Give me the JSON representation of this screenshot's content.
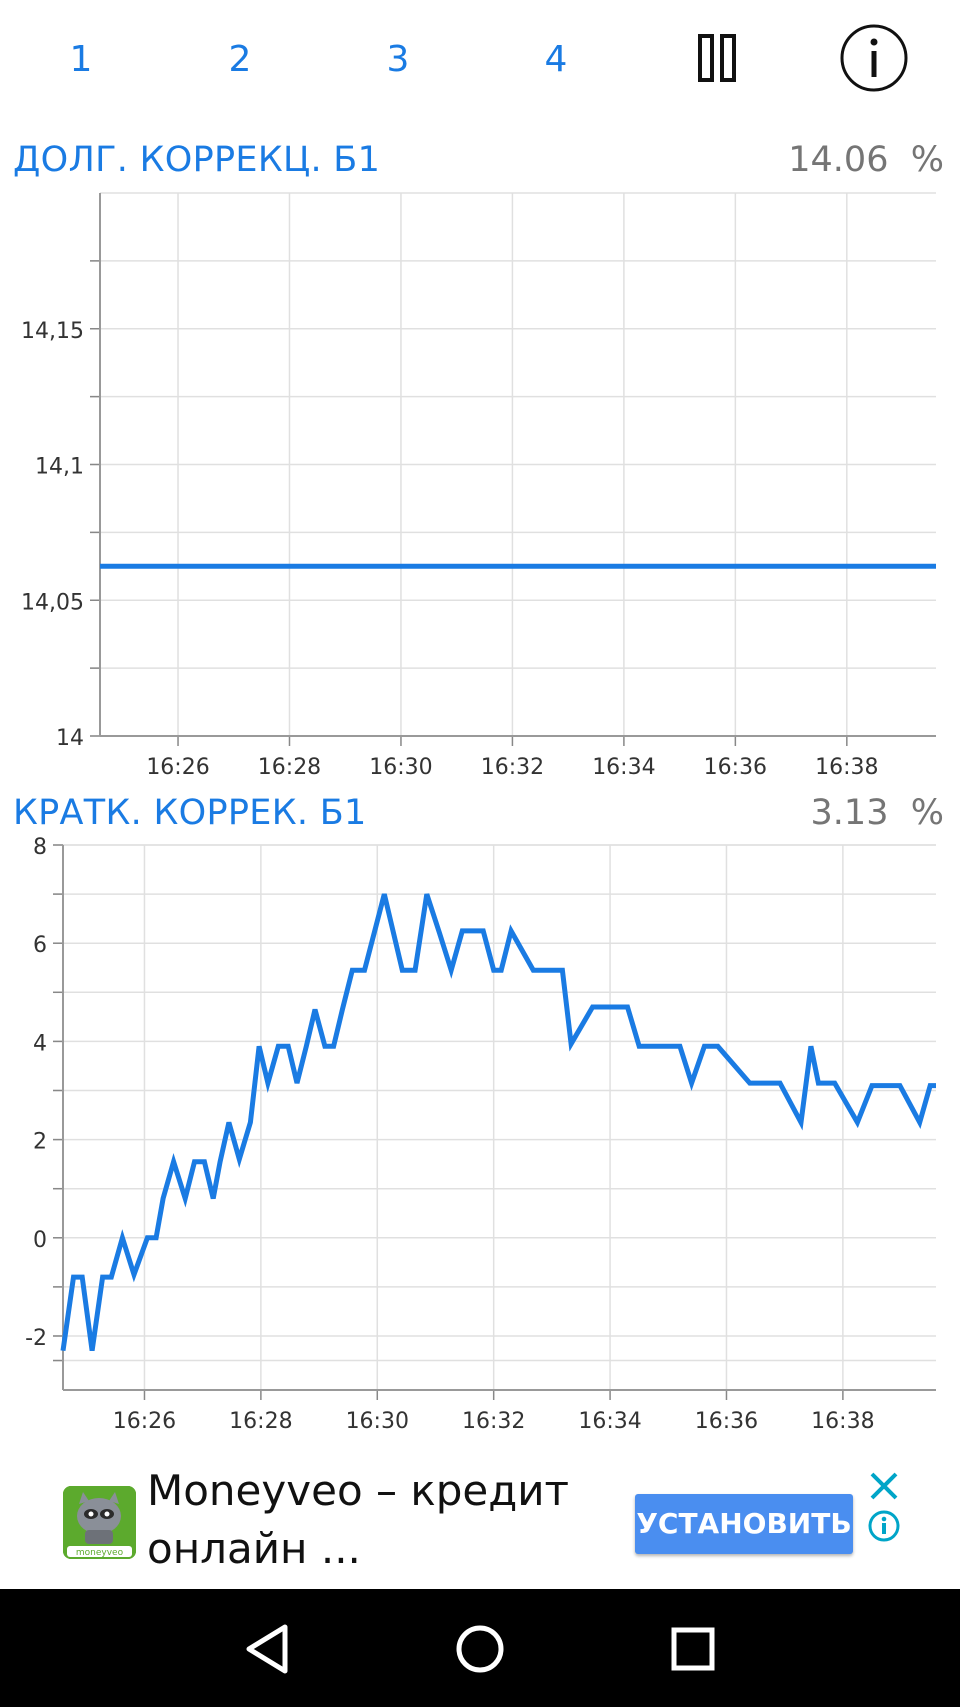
{
  "tabs": [
    {
      "label": "1"
    },
    {
      "label": "2"
    },
    {
      "label": "3"
    },
    {
      "label": "4"
    }
  ],
  "toolbar": {
    "pause_icon": "pause-icon",
    "info_icon": "info-icon"
  },
  "colors": {
    "accent": "#1a7be3",
    "grid": "#e0e0e0",
    "ad_button": "#4a8ef0",
    "ad_close": "#00a5c8"
  },
  "charts": [
    {
      "title": "ДОЛГ. КОРРЕКЦ. Б1",
      "value": "14.06",
      "unit": "%"
    },
    {
      "title": "КРАТК. КОРРЕК. Б1",
      "value": "3.13",
      "unit": "%"
    }
  ],
  "chart_data": [
    {
      "type": "line",
      "title": "ДОЛГ. КОРРЕКЦ. Б1",
      "x_tick_labels": [
        "16:26",
        "16:28",
        "16:30",
        "16:32",
        "16:34",
        "16:36",
        "16:38"
      ],
      "y_tick_labels": [
        "14",
        "14,05",
        "14,1",
        "14,15"
      ],
      "y_ticks": [
        14,
        14.05,
        14.1,
        14.15
      ],
      "ylim": [
        14,
        14.2
      ],
      "xlim_minutes": [
        24.6,
        39.6
      ],
      "grid": true,
      "series": [
        {
          "x": [
            24.6,
            39.6
          ],
          "y": [
            14.0625,
            14.0625
          ]
        }
      ]
    },
    {
      "type": "line",
      "title": "КРАТК. КОРРЕК. Б1",
      "x_tick_labels": [
        "16:26",
        "16:28",
        "16:30",
        "16:32",
        "16:34",
        "16:36",
        "16:38"
      ],
      "y_tick_labels": [
        "-2",
        "0",
        "2",
        "4",
        "6",
        "8"
      ],
      "y_ticks": [
        -2,
        0,
        2,
        4,
        6,
        8
      ],
      "ylim": [
        -3.1,
        8
      ],
      "xlim_minutes": [
        24.6,
        39.6
      ],
      "grid": true,
      "series": [
        {
          "x": [
            24.6,
            24.78,
            24.93,
            25.1,
            25.28,
            25.43,
            25.62,
            25.82,
            26.05,
            26.2,
            26.32,
            26.5,
            26.7,
            26.86,
            27.03,
            27.18,
            27.3,
            27.45,
            27.63,
            27.82,
            27.97,
            28.12,
            28.3,
            28.47,
            28.62,
            28.78,
            28.93,
            29.1,
            29.25,
            29.4,
            29.57,
            29.78,
            30.12,
            30.28,
            30.43,
            30.65,
            30.85,
            31.07,
            31.27,
            31.46,
            31.65,
            31.82,
            32.0,
            32.13,
            32.3,
            32.68,
            32.88,
            33.03,
            33.18,
            33.33,
            33.7,
            33.9,
            34.15,
            34.3,
            34.5,
            34.78,
            35.2,
            35.4,
            35.62,
            35.85,
            36.4,
            36.58,
            36.75,
            36.92,
            37.28,
            37.45,
            37.58,
            37.86,
            38.25,
            38.5,
            38.68,
            38.82,
            38.98,
            39.32,
            39.5,
            39.6
          ],
          "y": [
            -2.3,
            -0.8,
            -0.8,
            -2.3,
            -0.8,
            -0.8,
            0,
            -0.75,
            0,
            0,
            0.8,
            1.55,
            0.8,
            1.55,
            1.55,
            0.8,
            1.55,
            2.35,
            1.6,
            2.35,
            3.9,
            3.15,
            3.9,
            3.9,
            3.15,
            3.9,
            4.65,
            3.9,
            3.9,
            4.65,
            5.45,
            5.45,
            7.0,
            6.2,
            5.45,
            5.45,
            7.0,
            6.2,
            5.45,
            6.25,
            6.25,
            6.25,
            5.45,
            5.45,
            6.25,
            5.45,
            5.45,
            5.45,
            5.45,
            3.95,
            4.7,
            4.7,
            4.7,
            4.7,
            3.9,
            3.9,
            3.9,
            3.15,
            3.9,
            3.9,
            3.15,
            3.15,
            3.15,
            3.15,
            2.35,
            3.9,
            3.15,
            3.15,
            2.35,
            3.1,
            3.1,
            3.1,
            3.1,
            2.35,
            3.1,
            3.1
          ]
        }
      ]
    }
  ],
  "ad": {
    "title": "Moneyveo – кредит онлайн ...",
    "button_label": "УСТАНОВИТЬ",
    "logo_text": "moneyveo",
    "close_icon": "close-icon",
    "info_icon": "info-icon"
  },
  "navbar": {
    "back_icon": "back-icon",
    "home_icon": "home-icon",
    "recents_icon": "recents-icon"
  }
}
